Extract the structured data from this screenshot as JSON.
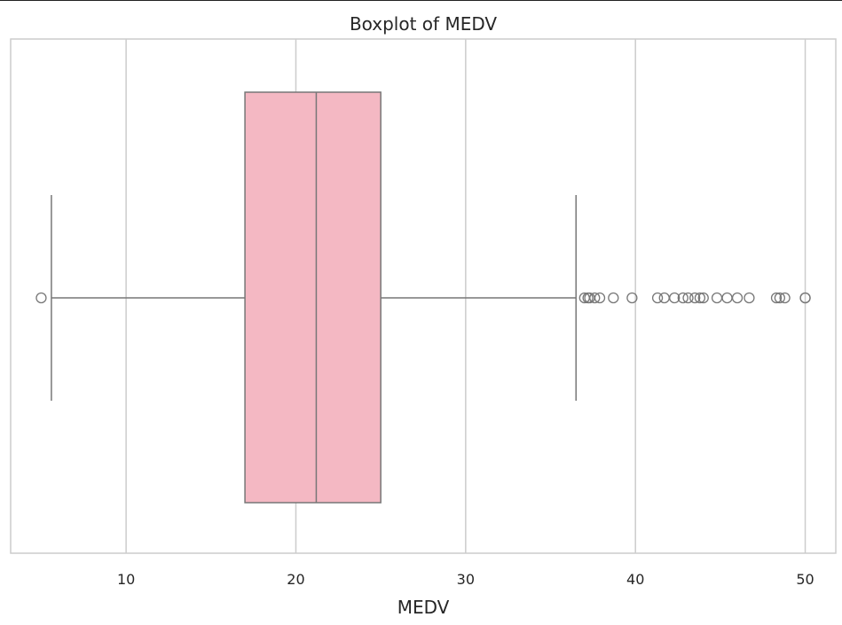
{
  "chart_data": {
    "type": "boxplot",
    "title": "Boxplot of MEDV",
    "xlabel": "MEDV",
    "ylabel": "",
    "xlim": [
      3.2,
      51.8
    ],
    "x_ticks": [
      10,
      20,
      30,
      40,
      50
    ],
    "x_tick_labels": [
      "10",
      "20",
      "30",
      "40",
      "50"
    ],
    "grid": "vertical",
    "box_color": "#f4b8c3",
    "line_color": "#777777",
    "stats": {
      "whisker_low": 5.6,
      "q1": 17.0,
      "median": 21.2,
      "q3": 25.0,
      "whisker_high": 36.5
    },
    "outliers": [
      5.0,
      37.0,
      37.2,
      37.3,
      37.6,
      37.9,
      38.7,
      39.8,
      41.3,
      41.7,
      42.3,
      42.8,
      43.1,
      43.5,
      43.8,
      44.0,
      44.8,
      45.4,
      46.0,
      46.7,
      48.3,
      48.5,
      48.8,
      50.0,
      50.0
    ]
  },
  "colors": {
    "grid": "#cccccc",
    "frame": "#cccccc",
    "text": "#262626"
  }
}
